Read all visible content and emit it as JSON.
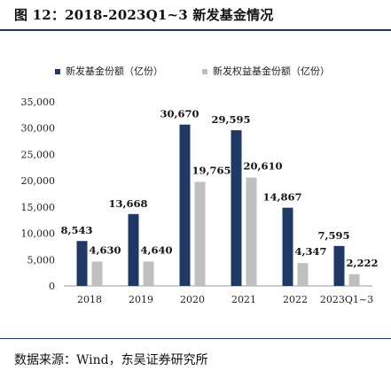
{
  "header": {
    "title": "图 12：2018-2023Q1~3 新发基金情况"
  },
  "footer": {
    "source": "数据来源：Wind，东吴证券研究所"
  },
  "colors": {
    "series1": "#1f3864",
    "series2": "#bfbfbf",
    "rule": "#1f3864"
  },
  "chart_data": {
    "type": "bar",
    "categories": [
      "2018",
      "2019",
      "2020",
      "2021",
      "2022",
      "2023Q1~3"
    ],
    "series": [
      {
        "name": "新发基金份额（亿份）",
        "values": [
          8543,
          13668,
          30670,
          29595,
          14867,
          7595
        ],
        "labels": [
          "8,543",
          "13,668",
          "30,670",
          "29,595",
          "14,867",
          "7,595"
        ]
      },
      {
        "name": "新发权益基金份额（亿份）",
        "values": [
          4630,
          4640,
          19765,
          20610,
          4347,
          2222
        ],
        "labels": [
          "4,630",
          "4,640",
          "19,765",
          "20,610",
          "4,347",
          "2,222"
        ]
      }
    ],
    "yticks": [
      "0",
      "5,000",
      "10,000",
      "15,000",
      "20,000",
      "25,000",
      "30,000",
      "35,000"
    ],
    "ylim": [
      0,
      35000
    ],
    "legend": "top",
    "grid": false
  }
}
